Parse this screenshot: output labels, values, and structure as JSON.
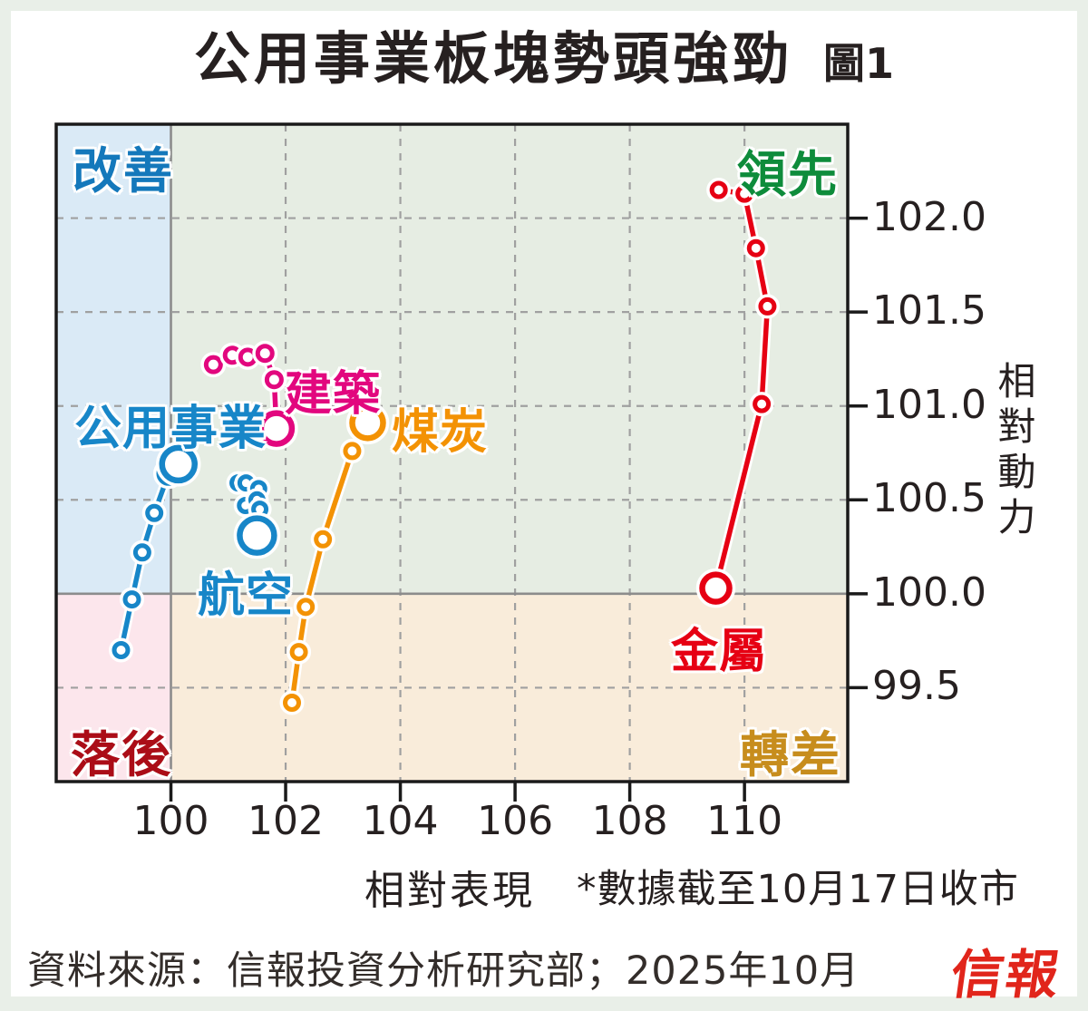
{
  "header": {
    "title": "公用事業板塊勢頭強勁",
    "figure_label": "圖1"
  },
  "quadrants": {
    "top_left": {
      "label": "改善",
      "color": "#1478bb",
      "bg": "#daeaf6"
    },
    "top_right": {
      "label": "領先",
      "color": "#0e8c3b",
      "bg": "#e6ede3"
    },
    "bottom_left": {
      "label": "落後",
      "color": "#ab0d17",
      "bg": "#fce6ec"
    },
    "bottom_right": {
      "label": "轉差",
      "color": "#c78d1d",
      "bg": "#f9ecda"
    }
  },
  "axes": {
    "x_title": "相對表現",
    "y_title": "相對動力",
    "footnote": "*數據截至10月17日收市"
  },
  "footer": {
    "source": "資料來源：信報投資分析研究部；2025年10月",
    "logo": "信報",
    "logo_color": "#e1251b"
  },
  "chart_data": {
    "type": "scatter",
    "title": "公用事業板塊勢頭強勁",
    "xlabel": "相對表現",
    "ylabel": "相對動力",
    "x_range": [
      98.0,
      111.8
    ],
    "y_range": [
      99.0,
      102.5
    ],
    "x_ticks": [
      100,
      102,
      104,
      106,
      108,
      110
    ],
    "x_tick_labels": [
      "100",
      "102",
      "104",
      "106",
      "108",
      "110"
    ],
    "y_ticks": [
      102.0,
      101.5,
      101.0,
      100.5,
      100.0,
      99.5
    ],
    "y_tick_labels": [
      "102.0",
      "101.5",
      "101.0",
      "100.5",
      "100.0",
      "99.5"
    ],
    "grid": "dashed",
    "center_x": 100,
    "center_y": 100,
    "grid_color": "#a0a0a0",
    "center_line_color": "#8c8c8c",
    "series": [
      {
        "name": "公用事業",
        "color": "#1786c8",
        "points": [
          [
            99.13,
            99.7
          ],
          [
            99.32,
            99.97
          ],
          [
            99.5,
            100.22
          ],
          [
            99.71,
            100.43
          ],
          [
            99.96,
            100.64
          ],
          [
            100.13,
            100.69
          ]
        ],
        "radii": [
          7.5,
          7.5,
          7.5,
          7.5,
          11,
          18
        ]
      },
      {
        "name": "建築",
        "color": "#e2077e",
        "points": [
          [
            100.74,
            101.22
          ],
          [
            101.07,
            101.27
          ],
          [
            101.34,
            101.26
          ],
          [
            101.64,
            101.28
          ],
          [
            101.8,
            101.14
          ],
          [
            101.84,
            100.88
          ]
        ],
        "radii": [
          8,
          8,
          8,
          8,
          8,
          17
        ]
      },
      {
        "name": "航空",
        "color": "#1786c8",
        "points": [
          [
            101.17,
            100.59
          ],
          [
            101.31,
            100.59
          ],
          [
            101.3,
            100.47
          ],
          [
            101.53,
            100.56
          ],
          [
            101.5,
            100.5
          ],
          [
            101.55,
            100.45
          ],
          [
            101.5,
            100.31
          ]
        ],
        "radii": [
          7,
          7,
          7,
          7,
          7,
          7,
          19
        ]
      },
      {
        "name": "煤炭",
        "color": "#f39204",
        "points": [
          [
            102.11,
            99.42
          ],
          [
            102.23,
            99.69
          ],
          [
            102.35,
            99.93
          ],
          [
            102.65,
            100.29
          ],
          [
            103.16,
            100.76
          ],
          [
            103.43,
            100.91
          ]
        ],
        "radii": [
          7.5,
          7.5,
          7.5,
          7.5,
          7.5,
          17
        ]
      },
      {
        "name": "金屬",
        "color": "#e60013",
        "points": [
          [
            109.55,
            102.15
          ],
          [
            110.0,
            102.13
          ],
          [
            110.2,
            101.84
          ],
          [
            110.4,
            101.53
          ],
          [
            110.3,
            101.01
          ],
          [
            109.5,
            100.03
          ]
        ],
        "radii": [
          7.5,
          7.5,
          7.5,
          7.5,
          7.5,
          15
        ]
      }
    ]
  }
}
